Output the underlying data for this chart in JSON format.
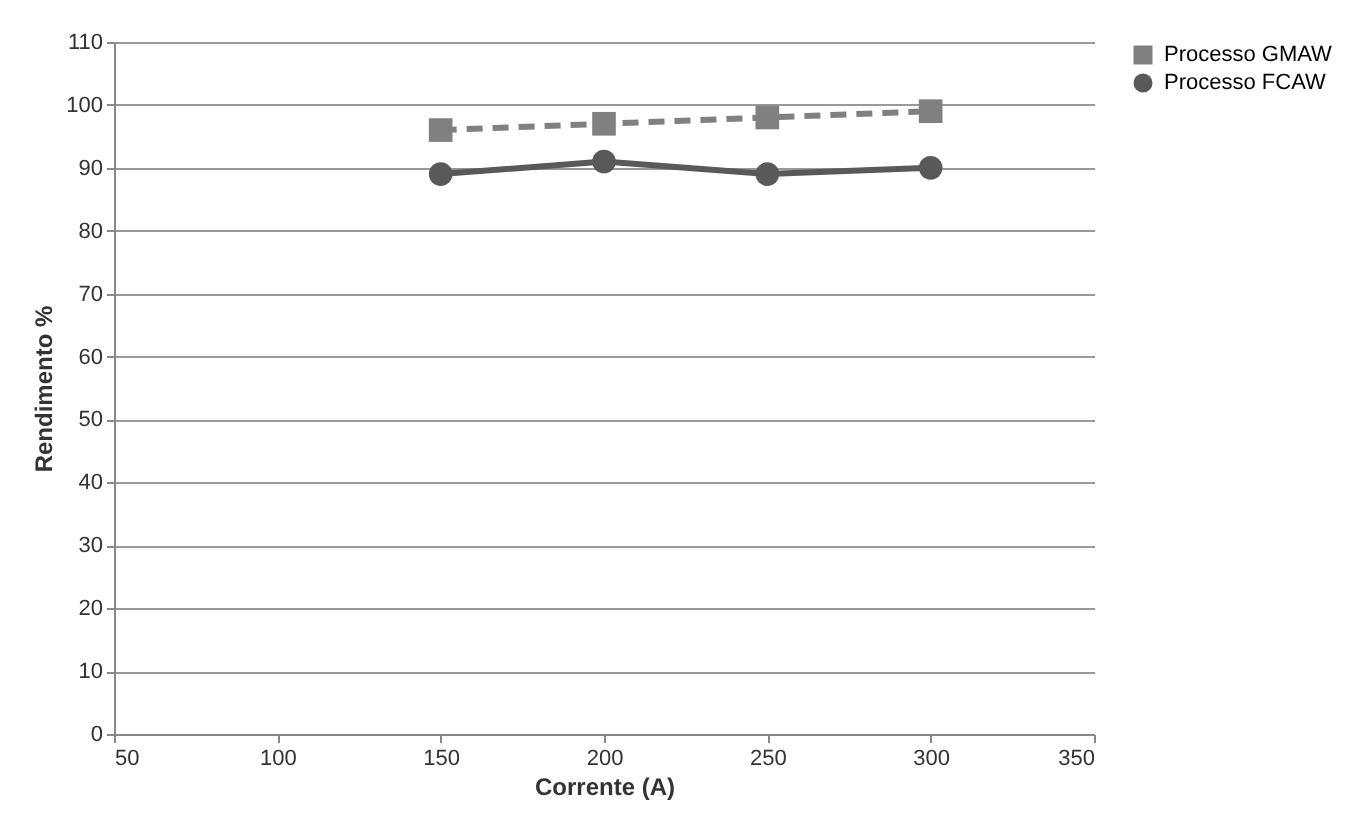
{
  "chart_data": {
    "type": "line",
    "xlabel": "Corrente (A)",
    "ylabel": "Rendimento %",
    "xlim": [
      50,
      350
    ],
    "xticks": [
      50,
      100,
      150,
      200,
      250,
      300,
      350
    ],
    "ylim": [
      0,
      110
    ],
    "yticks": [
      0,
      10,
      20,
      30,
      40,
      50,
      60,
      70,
      80,
      90,
      100,
      110
    ],
    "grid": "y",
    "legend": "right",
    "series": [
      {
        "name": "Processo GMAW",
        "color": "#808080",
        "x": [
          150,
          200,
          250,
          300
        ],
        "values": [
          96,
          97,
          98,
          99
        ],
        "marker": "square",
        "line_style": "dashed"
      },
      {
        "name": "Processo FCAW",
        "color": "#595959",
        "x": [
          150,
          200,
          250,
          300
        ],
        "values": [
          89,
          91,
          89,
          90
        ],
        "marker": "circle",
        "line_style": "solid"
      }
    ]
  }
}
